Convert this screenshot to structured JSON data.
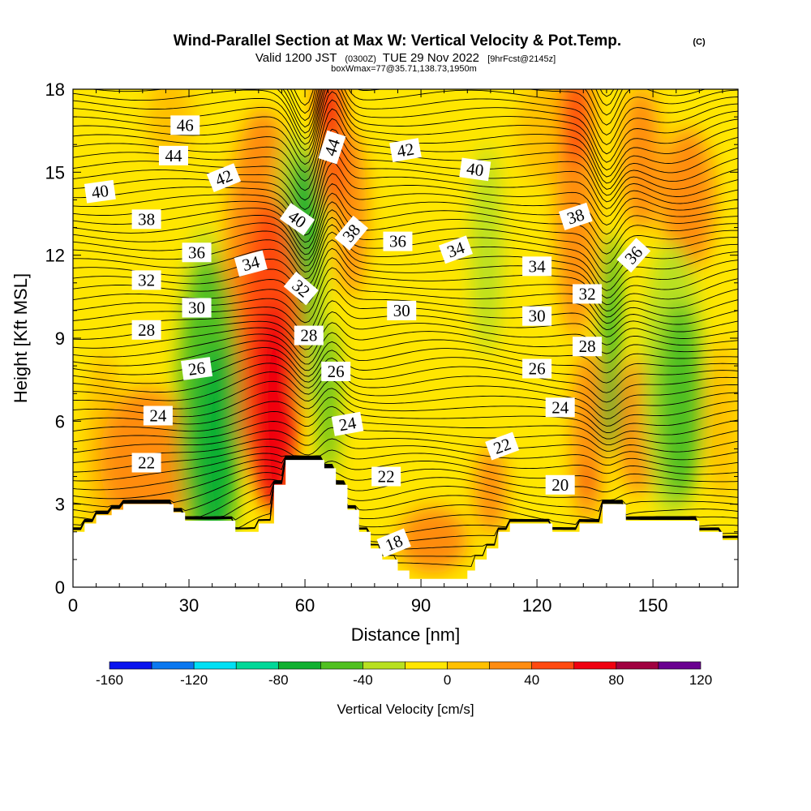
{
  "header": {
    "title": "Wind-Parallel Section at Max W: Vertical Velocity & Pot.Temp.",
    "copyright": "(C)",
    "valid_prefix": "Valid 1200 JST",
    "valid_utc": "(0300Z)",
    "valid_date": "TUE 29 Nov 2022",
    "forecast_tag": "[9hrFcst@2145z]",
    "box_info": "boxWmax=77@35.71,138.73,1950m"
  },
  "chart_data": {
    "type": "heatmap",
    "xlabel": "Distance [nm]",
    "ylabel": "Height [Kft MSL]",
    "xlim": [
      0,
      172
    ],
    "ylim": [
      0,
      18
    ],
    "x_ticks": [
      0,
      30,
      60,
      90,
      120,
      150
    ],
    "y_ticks": [
      0,
      3,
      6,
      9,
      12,
      15,
      18
    ],
    "colorbar": {
      "title": "Vertical Velocity [cm/s]",
      "ticks": [
        -160,
        -120,
        -80,
        -40,
        0,
        40,
        80,
        120
      ],
      "bounds": [
        -160,
        -140,
        -120,
        -100,
        -80,
        -60,
        -40,
        -20,
        0,
        20,
        40,
        60,
        80,
        100,
        120
      ],
      "colors": [
        "#0a14ee",
        "#0a78f0",
        "#00e0f4",
        "#00d898",
        "#10b030",
        "#50c020",
        "#b8e020",
        "#ffe600",
        "#ffc000",
        "#ff8c10",
        "#ff4a10",
        "#f00010",
        "#a00040",
        "#6a0090"
      ]
    },
    "terrain": [
      {
        "x": 0,
        "y": 2.0
      },
      {
        "x": 3,
        "y": 2.0
      },
      {
        "x": 3,
        "y": 2.3
      },
      {
        "x": 6,
        "y": 2.3
      },
      {
        "x": 6,
        "y": 2.6
      },
      {
        "x": 10,
        "y": 2.6
      },
      {
        "x": 10,
        "y": 2.8
      },
      {
        "x": 13,
        "y": 2.8
      },
      {
        "x": 13,
        "y": 3.0
      },
      {
        "x": 26,
        "y": 3.0
      },
      {
        "x": 26,
        "y": 2.7
      },
      {
        "x": 29,
        "y": 2.7
      },
      {
        "x": 29,
        "y": 2.4
      },
      {
        "x": 42,
        "y": 2.4
      },
      {
        "x": 42,
        "y": 2.0
      },
      {
        "x": 48,
        "y": 2.0
      },
      {
        "x": 48,
        "y": 2.3
      },
      {
        "x": 52,
        "y": 2.3
      },
      {
        "x": 52,
        "y": 3.7
      },
      {
        "x": 55,
        "y": 3.7
      },
      {
        "x": 55,
        "y": 4.6
      },
      {
        "x": 65,
        "y": 4.6
      },
      {
        "x": 65,
        "y": 4.3
      },
      {
        "x": 68,
        "y": 4.3
      },
      {
        "x": 68,
        "y": 3.7
      },
      {
        "x": 71,
        "y": 3.7
      },
      {
        "x": 71,
        "y": 2.8
      },
      {
        "x": 74,
        "y": 2.8
      },
      {
        "x": 74,
        "y": 2.0
      },
      {
        "x": 77,
        "y": 2.0
      },
      {
        "x": 77,
        "y": 1.4
      },
      {
        "x": 80,
        "y": 1.4
      },
      {
        "x": 80,
        "y": 1.0
      },
      {
        "x": 84,
        "y": 1.0
      },
      {
        "x": 84,
        "y": 0.6
      },
      {
        "x": 87,
        "y": 0.6
      },
      {
        "x": 87,
        "y": 0.3
      },
      {
        "x": 102,
        "y": 0.3
      },
      {
        "x": 102,
        "y": 0.6
      },
      {
        "x": 104,
        "y": 0.6
      },
      {
        "x": 104,
        "y": 1.0
      },
      {
        "x": 107,
        "y": 1.0
      },
      {
        "x": 107,
        "y": 1.4
      },
      {
        "x": 110,
        "y": 1.4
      },
      {
        "x": 110,
        "y": 2.0
      },
      {
        "x": 113,
        "y": 2.0
      },
      {
        "x": 113,
        "y": 2.3
      },
      {
        "x": 124,
        "y": 2.3
      },
      {
        "x": 124,
        "y": 2.0
      },
      {
        "x": 131,
        "y": 2.0
      },
      {
        "x": 131,
        "y": 2.3
      },
      {
        "x": 137,
        "y": 2.3
      },
      {
        "x": 137,
        "y": 3.0
      },
      {
        "x": 143,
        "y": 3.0
      },
      {
        "x": 143,
        "y": 2.4
      },
      {
        "x": 162,
        "y": 2.4
      },
      {
        "x": 162,
        "y": 2.0
      },
      {
        "x": 168,
        "y": 2.0
      },
      {
        "x": 168,
        "y": 1.7
      },
      {
        "x": 172,
        "y": 1.7
      }
    ],
    "w_features": [
      {
        "x": 52,
        "y": 6.5,
        "rx": 6,
        "ry": 3.8,
        "w": 70
      },
      {
        "x": 51,
        "y": 8.6,
        "rx": 8,
        "ry": 5.5,
        "w": 50
      },
      {
        "x": 49,
        "y": 10.8,
        "rx": 10,
        "ry": 6.5,
        "w": 30
      },
      {
        "x": 37,
        "y": 5.2,
        "rx": 6,
        "ry": 3.6,
        "w": -70
      },
      {
        "x": 35,
        "y": 6.5,
        "rx": 8,
        "ry": 5.5,
        "w": -45
      },
      {
        "x": 34,
        "y": 8.5,
        "rx": 6,
        "ry": 4.5,
        "w": -25
      },
      {
        "x": 19,
        "y": 4.6,
        "rx": 12,
        "ry": 2.6,
        "w": 30
      },
      {
        "x": 8,
        "y": 5.0,
        "rx": 5,
        "ry": 3.5,
        "w": 15
      },
      {
        "x": 60,
        "y": 13.5,
        "rx": 4,
        "ry": 2.3,
        "w": -70
      },
      {
        "x": 59,
        "y": 12.0,
        "rx": 4.5,
        "ry": 3.6,
        "w": -45
      },
      {
        "x": 61,
        "y": 9.7,
        "rx": 4,
        "ry": 3.2,
        "w": -40
      },
      {
        "x": 66,
        "y": 6.8,
        "rx": 2.5,
        "ry": 2.8,
        "w": -55
      },
      {
        "x": 57,
        "y": 14.6,
        "rx": 4,
        "ry": 2.0,
        "w": -30
      },
      {
        "x": 67,
        "y": 16.2,
        "rx": 3.2,
        "ry": 2.6,
        "w": 55
      },
      {
        "x": 66,
        "y": 17.5,
        "rx": 2.5,
        "ry": 1.3,
        "w": 65
      },
      {
        "x": 72,
        "y": 13.5,
        "rx": 4,
        "ry": 3.0,
        "w": 25
      },
      {
        "x": 107,
        "y": 12.2,
        "rx": 4,
        "ry": 3.8,
        "w": -30
      },
      {
        "x": 108,
        "y": 3.5,
        "rx": 4,
        "ry": 1.6,
        "w": 35
      },
      {
        "x": 93,
        "y": 1.7,
        "rx": 9,
        "ry": 1.2,
        "w": 20
      },
      {
        "x": 130,
        "y": 17.0,
        "rx": 4,
        "ry": 1.8,
        "w": 55
      },
      {
        "x": 130,
        "y": 13.5,
        "rx": 5,
        "ry": 4.5,
        "w": 35
      },
      {
        "x": 133,
        "y": 5.5,
        "rx": 4,
        "ry": 3.2,
        "w": 35
      },
      {
        "x": 133,
        "y": 3.8,
        "rx": 1.3,
        "ry": 0.6,
        "w": 65
      },
      {
        "x": 139,
        "y": 9.3,
        "rx": 2.2,
        "ry": 3.6,
        "w": -65
      },
      {
        "x": 139,
        "y": 6.8,
        "rx": 2.5,
        "ry": 2.0,
        "w": -45
      },
      {
        "x": 147,
        "y": 15.5,
        "rx": 5,
        "ry": 2.6,
        "w": 30
      },
      {
        "x": 146,
        "y": 5.8,
        "rx": 5,
        "ry": 2.5,
        "w": 25
      },
      {
        "x": 159,
        "y": 14.0,
        "rx": 7,
        "ry": 2.6,
        "w": 20
      },
      {
        "x": 158,
        "y": 12.5,
        "rx": 4,
        "ry": 1.3,
        "w": 30
      },
      {
        "x": 157,
        "y": 6.7,
        "rx": 6,
        "ry": 3.6,
        "w": -60
      },
      {
        "x": 155,
        "y": 7.5,
        "rx": 8,
        "ry": 5.0,
        "w": -35
      },
      {
        "x": 168,
        "y": 6.0,
        "rx": 4,
        "ry": 3.0,
        "w": 15
      },
      {
        "x": 123,
        "y": 16.5,
        "rx": 8,
        "ry": 2.0,
        "w": 15
      },
      {
        "x": 25,
        "y": 17.0,
        "rx": 6,
        "ry": 1.6,
        "w": 15
      }
    ],
    "theta_labels": [
      {
        "text": "46",
        "x": 29,
        "y": 16.7,
        "angle": 0
      },
      {
        "text": "44",
        "x": 26,
        "y": 15.6,
        "angle": 0
      },
      {
        "text": "42",
        "x": 39,
        "y": 14.8,
        "angle": -22
      },
      {
        "text": "40",
        "x": 7,
        "y": 14.3,
        "angle": -8
      },
      {
        "text": "38",
        "x": 19,
        "y": 13.3,
        "angle": 0
      },
      {
        "text": "36",
        "x": 32,
        "y": 12.1,
        "angle": 0
      },
      {
        "text": "34",
        "x": 46,
        "y": 11.7,
        "angle": -15
      },
      {
        "text": "32",
        "x": 19,
        "y": 11.1,
        "angle": 0
      },
      {
        "text": "30",
        "x": 32,
        "y": 10.1,
        "angle": 0
      },
      {
        "text": "28",
        "x": 19,
        "y": 9.3,
        "angle": 0
      },
      {
        "text": "26",
        "x": 32,
        "y": 7.9,
        "angle": -8
      },
      {
        "text": "24",
        "x": 22,
        "y": 6.2,
        "angle": 0
      },
      {
        "text": "22",
        "x": 19,
        "y": 4.5,
        "angle": 0
      },
      {
        "text": "40",
        "x": 58,
        "y": 13.3,
        "angle": 35
      },
      {
        "text": "32",
        "x": 59,
        "y": 10.8,
        "angle": 40
      },
      {
        "text": "28",
        "x": 61,
        "y": 9.1,
        "angle": 0
      },
      {
        "text": "26",
        "x": 68,
        "y": 7.8,
        "angle": 0
      },
      {
        "text": "24",
        "x": 71,
        "y": 5.9,
        "angle": -10
      },
      {
        "text": "44",
        "x": 67,
        "y": 15.9,
        "angle": -72
      },
      {
        "text": "38",
        "x": 72,
        "y": 12.8,
        "angle": -50
      },
      {
        "text": "42",
        "x": 86,
        "y": 15.8,
        "angle": -10
      },
      {
        "text": "36",
        "x": 84,
        "y": 12.5,
        "angle": 0
      },
      {
        "text": "34",
        "x": 99,
        "y": 12.2,
        "angle": -20
      },
      {
        "text": "30",
        "x": 85,
        "y": 10.0,
        "angle": 0
      },
      {
        "text": "40",
        "x": 104,
        "y": 15.1,
        "angle": 8
      },
      {
        "text": "22",
        "x": 81,
        "y": 4.0,
        "angle": 0
      },
      {
        "text": "18",
        "x": 83,
        "y": 1.6,
        "angle": -22
      },
      {
        "text": "22",
        "x": 111,
        "y": 5.1,
        "angle": -20
      },
      {
        "text": "38",
        "x": 130,
        "y": 13.4,
        "angle": -18
      },
      {
        "text": "34",
        "x": 120,
        "y": 11.6,
        "angle": 0
      },
      {
        "text": "32",
        "x": 133,
        "y": 10.6,
        "angle": 0
      },
      {
        "text": "30",
        "x": 120,
        "y": 9.8,
        "angle": 0
      },
      {
        "text": "28",
        "x": 133,
        "y": 8.7,
        "angle": 0
      },
      {
        "text": "26",
        "x": 120,
        "y": 7.9,
        "angle": 0
      },
      {
        "text": "24",
        "x": 126,
        "y": 6.5,
        "angle": 0
      },
      {
        "text": "20",
        "x": 126,
        "y": 3.7,
        "angle": 0
      },
      {
        "text": "36",
        "x": 145,
        "y": 12.0,
        "angle": -48
      }
    ]
  }
}
